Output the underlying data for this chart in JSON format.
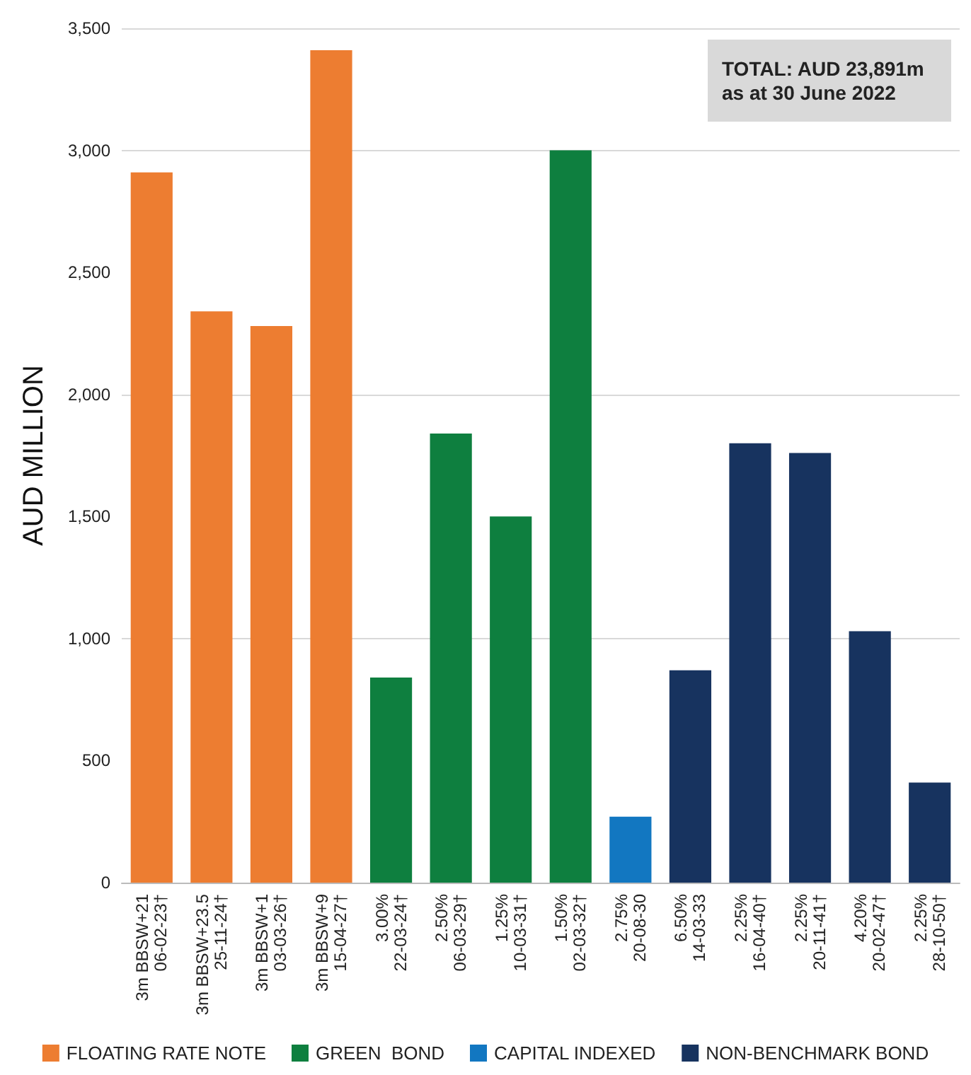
{
  "chart_data": {
    "type": "bar",
    "ylabel": "AUD MILLION",
    "categories": [
      "3m BBSW+21\n06-02-23†",
      "3m BBSW+23.5\n25-11-24†",
      "3m BBSW+1\n03-03-26†",
      "3m BBSW+9\n15-04-27†",
      "3.00%\n22-03-24†",
      "2.50%\n06-03-29†",
      "1.25%\n10-03-31†",
      "1.50%\n02-03-32†",
      "2.75%\n20-08-30",
      "6.50%\n14-03-33",
      "2.25%\n16-04-40†",
      "2.25%\n20-11-41†",
      "4.20%\n20-02-47†",
      "2.25%\n28-10-50†"
    ],
    "series": [
      {
        "name": "FLOATING RATE NOTE",
        "color": "#ed7d31",
        "values": [
          2910,
          2340,
          2280,
          3410,
          null,
          null,
          null,
          null,
          null,
          null,
          null,
          null,
          null,
          null
        ]
      },
      {
        "name": "GREEN  BOND",
        "color": "#0e7f3f",
        "values": [
          null,
          null,
          null,
          null,
          840,
          1840,
          1500,
          3000,
          null,
          null,
          null,
          null,
          null,
          null
        ]
      },
      {
        "name": "CAPITAL INDEXED",
        "color": "#1277c1",
        "values": [
          null,
          null,
          null,
          null,
          null,
          null,
          null,
          null,
          270,
          null,
          null,
          null,
          null,
          null
        ]
      },
      {
        "name": "NON-BENCHMARK BOND",
        "color": "#17335f",
        "values": [
          null,
          null,
          null,
          null,
          null,
          null,
          null,
          null,
          null,
          870,
          1800,
          1760,
          1030,
          410
        ]
      }
    ],
    "ylim": [
      0,
      3500
    ],
    "yticks": [
      0,
      500,
      {
        "value": 1000,
        "label": "1,000"
      },
      {
        "value": 1500,
        "label": "1,500"
      },
      {
        "value": 2000,
        "label": "2,000"
      },
      {
        "value": 2500,
        "label": "2,500"
      },
      {
        "value": 3000,
        "label": "3,000"
      },
      {
        "value": 3500,
        "label": "3,500"
      }
    ],
    "grid": "y",
    "legend": "bottom",
    "annotations": [
      "TOTAL: AUD 23,891m\nas at 30 June 2022"
    ]
  }
}
